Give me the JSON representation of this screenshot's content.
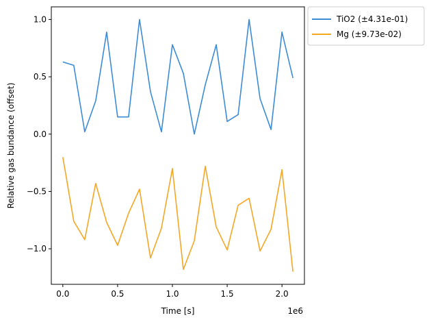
{
  "chart_data": {
    "type": "line",
    "xlabel": "Time [s]",
    "ylabel": "Relative gas bundance (offset)",
    "x_offset_label": "1e6",
    "xlim": [
      -0.105,
      2.205
    ],
    "ylim": [
      -1.31,
      1.11
    ],
    "x_ticks": [
      0.0,
      0.5,
      1.0,
      1.5,
      2.0
    ],
    "x_tick_labels": [
      "0.0",
      "0.5",
      "1.0",
      "1.5",
      "2.0"
    ],
    "y_ticks": [
      1.0,
      0.5,
      0.0,
      -0.5,
      -1.0
    ],
    "y_tick_labels": [
      "1.0",
      "0.5",
      "0.0",
      "−0.5",
      "−1.0"
    ],
    "legend_position": "outside upper right",
    "grid": false,
    "x": [
      0.0,
      0.1,
      0.2,
      0.3,
      0.4,
      0.5,
      0.6,
      0.7,
      0.8,
      0.9,
      1.0,
      1.1,
      1.2,
      1.3,
      1.4,
      1.5,
      1.6,
      1.7,
      1.8,
      1.9,
      2.0,
      2.1
    ],
    "series": [
      {
        "name": "TiO2 (±4.31e-01)",
        "color": "#3a8bd8",
        "values": [
          0.63,
          0.6,
          0.02,
          0.29,
          0.89,
          0.15,
          0.15,
          1.0,
          0.37,
          0.02,
          0.78,
          0.53,
          0.0,
          0.43,
          0.78,
          0.11,
          0.17,
          1.0,
          0.31,
          0.04,
          0.89,
          0.49
        ]
      },
      {
        "name": "Mg (±9.73e-02)",
        "color": "#f5a623",
        "values": [
          -0.2,
          -0.76,
          -0.92,
          -0.43,
          -0.77,
          -0.97,
          -0.69,
          -0.48,
          -1.08,
          -0.82,
          -0.3,
          -1.18,
          -0.93,
          -0.28,
          -0.81,
          -1.01,
          -0.62,
          -0.56,
          -1.02,
          -0.83,
          -0.31,
          -1.2
        ]
      }
    ]
  }
}
